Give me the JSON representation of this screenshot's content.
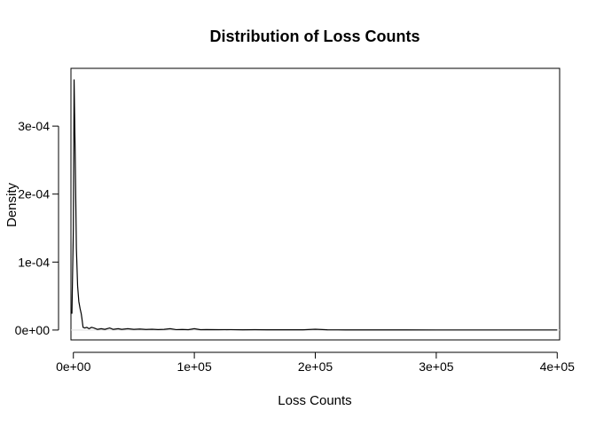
{
  "chart_data": {
    "type": "line",
    "title": "Distribution of Loss Counts",
    "xlabel": "Loss Counts",
    "ylabel": "Density",
    "xlim": [
      -2000,
      402000
    ],
    "ylim": [
      -1.45e-05,
      0.000385
    ],
    "x_ticks": [
      {
        "value": 0,
        "label": "0e+00"
      },
      {
        "value": 100000,
        "label": "1e+05"
      },
      {
        "value": 200000,
        "label": "2e+05"
      },
      {
        "value": 300000,
        "label": "3e+05"
      },
      {
        "value": 400000,
        "label": "4e+05"
      }
    ],
    "y_ticks": [
      {
        "value": 0,
        "label": "0e+00"
      },
      {
        "value": 0.0001,
        "label": "1e-04"
      },
      {
        "value": 0.0002,
        "label": "2e-04"
      },
      {
        "value": 0.0003,
        "label": "3e-04"
      }
    ],
    "grid": false,
    "series": [
      {
        "color": "#000000",
        "points": [
          [
            -1200,
            2.4e-05
          ],
          [
            0,
            0.00015
          ],
          [
            600,
            0.000368
          ],
          [
            1500,
            0.00026
          ],
          [
            2500,
            0.00012
          ],
          [
            3500,
            6.5e-05
          ],
          [
            4500,
            4.2e-05
          ],
          [
            5500,
            3.2e-05
          ],
          [
            6500,
            2.4e-05
          ],
          [
            7000,
            1.8e-05
          ],
          [
            8000,
            4e-06
          ],
          [
            9500,
            3e-06
          ],
          [
            11000,
            4e-06
          ],
          [
            13000,
            2e-06
          ],
          [
            15000,
            4e-06
          ],
          [
            17000,
            3e-06
          ],
          [
            20000,
            1e-06
          ],
          [
            23000,
            2e-06
          ],
          [
            26000,
            1e-06
          ],
          [
            30000,
            3e-06
          ],
          [
            33000,
            1e-06
          ],
          [
            37000,
            2e-06
          ],
          [
            40000,
            1e-06
          ],
          [
            45000,
            2e-06
          ],
          [
            50000,
            1e-06
          ],
          [
            55000,
            1.5e-06
          ],
          [
            60000,
            8e-07
          ],
          [
            65000,
            1.2e-06
          ],
          [
            70000,
            7e-07
          ],
          [
            75000,
            1e-06
          ],
          [
            80000,
            2e-06
          ],
          [
            85000,
            6e-07
          ],
          [
            90000,
            8e-07
          ],
          [
            95000,
            5e-07
          ],
          [
            100000,
            2e-06
          ],
          [
            105000,
            5e-07
          ],
          [
            110000,
            7e-07
          ],
          [
            120000,
            5e-07
          ],
          [
            130000,
            6e-07
          ],
          [
            140000,
            4e-07
          ],
          [
            150000,
            5e-07
          ],
          [
            160000,
            3e-07
          ],
          [
            170000,
            4e-07
          ],
          [
            180000,
            3e-07
          ],
          [
            190000,
            3e-07
          ],
          [
            200000,
            1.2e-06
          ],
          [
            210000,
            3e-07
          ],
          [
            225000,
            2e-07
          ],
          [
            250000,
            2e-07
          ],
          [
            275000,
            2e-07
          ],
          [
            300000,
            1e-07
          ],
          [
            325000,
            1e-07
          ],
          [
            350000,
            1e-07
          ],
          [
            375000,
            1e-07
          ],
          [
            400000,
            1e-07
          ]
        ]
      }
    ]
  }
}
